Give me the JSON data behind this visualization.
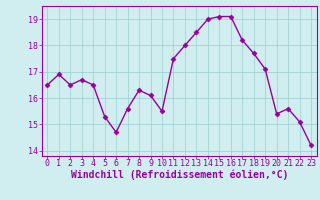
{
  "x": [
    0,
    1,
    2,
    3,
    4,
    5,
    6,
    7,
    8,
    9,
    10,
    11,
    12,
    13,
    14,
    15,
    16,
    17,
    18,
    19,
    20,
    21,
    22,
    23
  ],
  "y": [
    16.5,
    16.9,
    16.5,
    16.7,
    16.5,
    15.3,
    14.7,
    15.6,
    16.3,
    16.1,
    15.5,
    17.5,
    18.0,
    18.5,
    19.0,
    19.1,
    19.1,
    18.2,
    17.7,
    17.1,
    15.4,
    15.6,
    15.1,
    14.2
  ],
  "line_color": "#990099",
  "marker": "D",
  "markersize": 2.5,
  "linewidth": 1.0,
  "xlabel": "Windchill (Refroidissement éolien,°C)",
  "xlabel_fontsize": 7,
  "ylim": [
    13.8,
    19.5
  ],
  "xlim": [
    -0.5,
    23.5
  ],
  "yticks": [
    14,
    15,
    16,
    17,
    18,
    19
  ],
  "xticks": [
    0,
    1,
    2,
    3,
    4,
    5,
    6,
    7,
    8,
    9,
    10,
    11,
    12,
    13,
    14,
    15,
    16,
    17,
    18,
    19,
    20,
    21,
    22,
    23
  ],
  "tick_fontsize": 6,
  "grid_color": "#99cccc",
  "bg_color": "#d0eef0",
  "tick_color": "#990099",
  "label_color": "#990099",
  "spine_color": "#990099"
}
